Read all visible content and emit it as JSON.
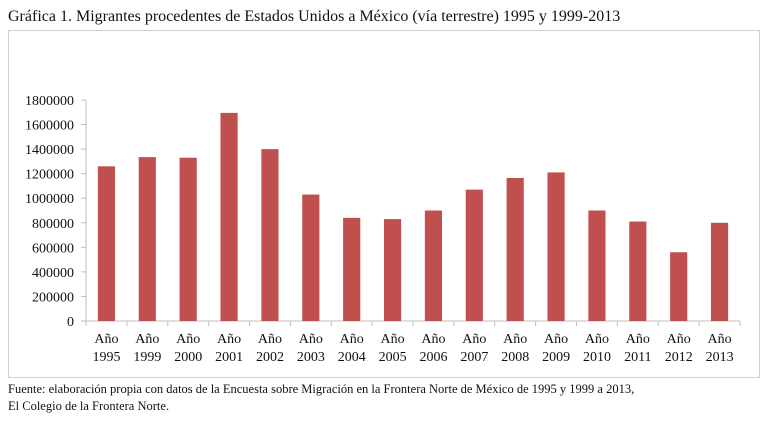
{
  "chart_data": {
    "type": "bar",
    "title": "Gráfica 1. Migrantes procedentes de Estados Unidos a México (vía terrestre) 1995 y 1999-2013",
    "xlabel": "",
    "ylabel": "",
    "category_prefix": "Año",
    "categories": [
      "1995",
      "1999",
      "2000",
      "2001",
      "2002",
      "2003",
      "2004",
      "2005",
      "2006",
      "2007",
      "2008",
      "2009",
      "2010",
      "2011",
      "2012",
      "2013"
    ],
    "values": [
      1260000,
      1335000,
      1330000,
      1695000,
      1400000,
      1030000,
      840000,
      830000,
      900000,
      1070000,
      1165000,
      1210000,
      900000,
      810000,
      560000,
      800000
    ],
    "ylim": [
      0,
      1800000
    ],
    "yticks": [
      "0",
      "200000",
      "400000",
      "600000",
      "800000",
      "1000000",
      "1200000",
      "1400000",
      "1600000",
      "1800000"
    ],
    "grid": false,
    "legend": "none",
    "bar_color": "#c0504d",
    "axis_color": "#bfbfbf"
  },
  "source_note": {
    "line1": "Fuente: elaboración propia con datos de la Encuesta sobre Migración en la Frontera Norte de México de 1995 y 1999 a 2013,",
    "line2": "El Colegio de la Frontera Norte."
  }
}
